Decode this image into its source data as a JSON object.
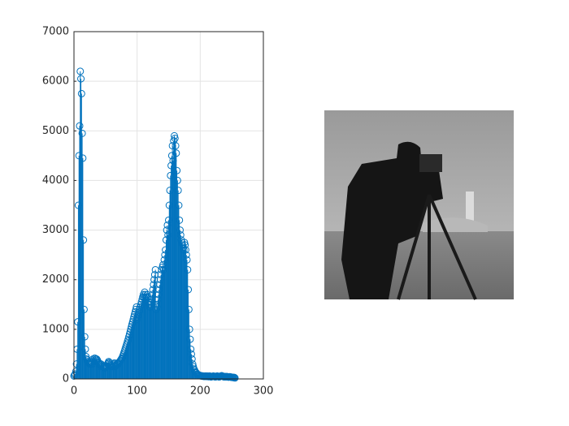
{
  "chart_data": {
    "type": "stem",
    "x": [
      0,
      1,
      2,
      3,
      4,
      5,
      6,
      7,
      8,
      9,
      10,
      11,
      12,
      13,
      14,
      15,
      16,
      17,
      18,
      19,
      20,
      21,
      22,
      23,
      24,
      25,
      26,
      27,
      28,
      29,
      30,
      31,
      32,
      33,
      34,
      35,
      36,
      37,
      38,
      39,
      40,
      41,
      42,
      43,
      44,
      45,
      46,
      47,
      48,
      49,
      50,
      51,
      52,
      53,
      54,
      55,
      56,
      57,
      58,
      59,
      60,
      61,
      62,
      63,
      64,
      65,
      66,
      67,
      68,
      69,
      70,
      71,
      72,
      73,
      74,
      75,
      76,
      77,
      78,
      79,
      80,
      81,
      82,
      83,
      84,
      85,
      86,
      87,
      88,
      89,
      90,
      91,
      92,
      93,
      94,
      95,
      96,
      97,
      98,
      99,
      100,
      101,
      102,
      103,
      104,
      105,
      106,
      107,
      108,
      109,
      110,
      111,
      112,
      113,
      114,
      115,
      116,
      117,
      118,
      119,
      120,
      121,
      122,
      123,
      124,
      125,
      126,
      127,
      128,
      129,
      130,
      131,
      132,
      133,
      134,
      135,
      136,
      137,
      138,
      139,
      140,
      141,
      142,
      143,
      144,
      145,
      146,
      147,
      148,
      149,
      150,
      151,
      152,
      153,
      154,
      155,
      156,
      157,
      158,
      159,
      160,
      161,
      162,
      163,
      164,
      165,
      166,
      167,
      168,
      169,
      170,
      171,
      172,
      173,
      174,
      175,
      176,
      177,
      178,
      179,
      180,
      181,
      182,
      183,
      184,
      185,
      186,
      187,
      188,
      189,
      190,
      191,
      192,
      193,
      194,
      195,
      196,
      197,
      198,
      199,
      200,
      201,
      202,
      203,
      204,
      205,
      206,
      207,
      208,
      209,
      210,
      211,
      212,
      213,
      214,
      215,
      216,
      217,
      218,
      219,
      220,
      221,
      222,
      223,
      224,
      225,
      226,
      227,
      228,
      229,
      230,
      231,
      232,
      233,
      234,
      235,
      236,
      237,
      238,
      239,
      240,
      241,
      242,
      243,
      244,
      245,
      246,
      247,
      248,
      249,
      250,
      251,
      252,
      253,
      254,
      255
    ],
    "values": [
      60,
      80,
      100,
      150,
      300,
      600,
      1150,
      3500,
      4500,
      5100,
      6200,
      6050,
      5750,
      4950,
      4450,
      2800,
      1400,
      850,
      600,
      450,
      400,
      380,
      350,
      330,
      320,
      300,
      330,
      300,
      350,
      300,
      400,
      380,
      350,
      420,
      380,
      400,
      400,
      380,
      350,
      320,
      300,
      280,
      250,
      300,
      280,
      250,
      260,
      240,
      250,
      220,
      230,
      250,
      260,
      300,
      320,
      350,
      330,
      300,
      280,
      250,
      260,
      250,
      280,
      300,
      320,
      250,
      260,
      280,
      300,
      320,
      300,
      320,
      340,
      360,
      380,
      400,
      420,
      450,
      480,
      520,
      560,
      600,
      640,
      680,
      720,
      760,
      800,
      850,
      900,
      950,
      1000,
      1050,
      1100,
      1150,
      1200,
      1250,
      1300,
      1350,
      1400,
      1450,
      1200,
      1250,
      1300,
      1350,
      1400,
      1450,
      1500,
      1550,
      1600,
      1650,
      1700,
      1650,
      1750,
      1700,
      1650,
      1600,
      1700,
      1650,
      1550,
      1500,
      1450,
      1500,
      1550,
      1600,
      1700,
      1800,
      1900,
      2000,
      2100,
      2200,
      1400,
      1500,
      1450,
      1600,
      1700,
      1800,
      1900,
      2000,
      2100,
      2200,
      2250,
      2300,
      2200,
      2400,
      2500,
      2600,
      2800,
      3000,
      3100,
      2900,
      3200,
      3500,
      3800,
      4100,
      4300,
      4500,
      4700,
      4400,
      4800,
      4900,
      4850,
      4700,
      4550,
      4200,
      4000,
      3800,
      3500,
      3200,
      3000,
      2900,
      2800,
      2750,
      2700,
      2650,
      2600,
      2750,
      2700,
      2600,
      2500,
      2400,
      2200,
      1800,
      1400,
      1000,
      800,
      600,
      500,
      400,
      300,
      250,
      200,
      180,
      150,
      130,
      120,
      100,
      90,
      80,
      80,
      70,
      70,
      60,
      65,
      60,
      55,
      60,
      50,
      55,
      60,
      50,
      55,
      60,
      50,
      45,
      55,
      60,
      50,
      40,
      45,
      50,
      55,
      60,
      50,
      45,
      40,
      50,
      55,
      60,
      50,
      45,
      40,
      50,
      55,
      60,
      65,
      60,
      50,
      45,
      40,
      50,
      45,
      40,
      50,
      45,
      40,
      35,
      40,
      45,
      40,
      35,
      30,
      35,
      30,
      25,
      30,
      20
    ],
    "color": "#0072bd",
    "xlim": [
      0,
      300
    ],
    "xticks": [
      0,
      100,
      200,
      300
    ],
    "ylim": [
      0,
      7000
    ],
    "yticks": [
      0,
      1000,
      2000,
      3000,
      4000,
      5000,
      6000,
      7000
    ],
    "grid": true
  }
}
